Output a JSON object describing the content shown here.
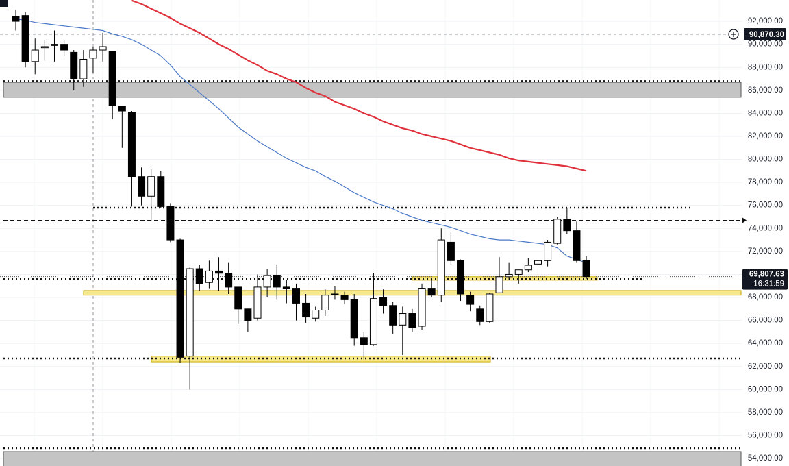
{
  "chart_data": {
    "type": "candlestick",
    "ylim": [
      53350,
      93850
    ],
    "yticks": [
      {
        "value": 54000,
        "label": "54,000.00"
      },
      {
        "value": 56000,
        "label": "56,000.00"
      },
      {
        "value": 58000,
        "label": "58,000.00"
      },
      {
        "value": 60000,
        "label": "60,000.00"
      },
      {
        "value": 62000,
        "label": "62,000.00"
      },
      {
        "value": 64000,
        "label": "64,000.00"
      },
      {
        "value": 66000,
        "label": "66,000.00"
      },
      {
        "value": 68000,
        "label": "68,000.00"
      },
      {
        "value": 70000,
        "label": "70,000.00"
      },
      {
        "value": 72000,
        "label": "72,000.00"
      },
      {
        "value": 74000,
        "label": "74,000.00"
      },
      {
        "value": 76000,
        "label": "76,000.00"
      },
      {
        "value": 78000,
        "label": "78,000.00"
      },
      {
        "value": 80000,
        "label": "80,000.00"
      },
      {
        "value": 82000,
        "label": "82,000.00"
      },
      {
        "value": 84000,
        "label": "84,000.00"
      },
      {
        "value": 86000,
        "label": "86,000.00"
      },
      {
        "value": 88000,
        "label": "88,000.00"
      },
      {
        "value": 90000,
        "label": "90,000.00"
      },
      {
        "value": 92000,
        "label": "92,000.00"
      }
    ],
    "grid": true,
    "up_color": "#ffffff",
    "down_color": "#000000",
    "open": [
      92400,
      92500,
      88500,
      89700,
      89900,
      90000,
      89300,
      87000,
      88800,
      89500,
      89400,
      84600,
      84100,
      78500,
      76800,
      78500,
      75900,
      73000,
      62900,
      70500,
      69300,
      70300,
      70100,
      68900,
      67000,
      66200,
      68900,
      69900,
      68900,
      68800,
      67500,
      66200,
      66900,
      68300,
      68200,
      67800,
      64500,
      63900,
      68000,
      67300,
      65600,
      66600,
      65500,
      68800,
      68200,
      72800,
      71200,
      68200,
      67000,
      65900,
      68400,
      69800,
      70000,
      70400,
      70900,
      71200,
      72700,
      74800,
      73800,
      71200
    ],
    "high": [
      93000,
      92800,
      90500,
      90400,
      91200,
      90400,
      89500,
      89500,
      89800,
      91000,
      89400,
      84600,
      84200,
      79300,
      79200,
      79000,
      76200,
      73100,
      70600,
      70800,
      71200,
      71500,
      71000,
      68900,
      67000,
      70000,
      70500,
      70800,
      69500,
      69200,
      68300,
      67200,
      68700,
      69000,
      68500,
      68300,
      65000,
      70100,
      68700,
      67600,
      67200,
      67000,
      69200,
      69600,
      74000,
      73700,
      71300,
      68500,
      67300,
      68400,
      71500,
      71000,
      70400,
      71400,
      71200,
      73000,
      75000,
      75800,
      74600,
      71600
    ],
    "low": [
      91200,
      88000,
      87400,
      88600,
      88500,
      89000,
      86000,
      86300,
      87500,
      88500,
      83500,
      81000,
      75900,
      76000,
      74600,
      75800,
      72800,
      62300,
      60000,
      68600,
      68800,
      68600,
      68300,
      65700,
      65000,
      66000,
      68000,
      67800,
      67500,
      66000,
      65800,
      65900,
      66400,
      67800,
      67400,
      63800,
      62600,
      63800,
      66600,
      64800,
      63000,
      65000,
      65200,
      68000,
      67600,
      70800,
      67700,
      66800,
      65600,
      65800,
      68400,
      69500,
      69200,
      70200,
      70000,
      70700,
      72600,
      73500,
      71000,
      69600
    ],
    "close": [
      92000,
      88500,
      89500,
      89800,
      90000,
      89500,
      87000,
      88700,
      89500,
      89800,
      84700,
      84200,
      78500,
      76800,
      78500,
      75900,
      73000,
      62800,
      70500,
      69200,
      70300,
      70100,
      68900,
      67000,
      66000,
      68900,
      69900,
      68900,
      68800,
      67500,
      66300,
      66900,
      68200,
      68300,
      67800,
      64500,
      63900,
      67900,
      67300,
      65600,
      66600,
      65400,
      68800,
      68200,
      73000,
      71200,
      68300,
      67400,
      65900,
      68300,
      69800,
      70000,
      70400,
      70800,
      71200,
      72800,
      74800,
      73800,
      71200,
      69807.63
    ],
    "series": [
      {
        "color": "#4a78c8",
        "values": [
          92200,
          92100,
          91900,
          91800,
          91700,
          91600,
          91500,
          91400,
          91300,
          91200,
          90900,
          90700,
          90400,
          90000,
          89500,
          89000,
          88200,
          87200,
          86500,
          85800,
          85100,
          84400,
          83600,
          82800,
          82200,
          81600,
          81100,
          80600,
          80100,
          79700,
          79300,
          79000,
          78500,
          78100,
          77600,
          77100,
          76700,
          76300,
          76000,
          75700,
          75300,
          75000,
          74700,
          74500,
          74300,
          74100,
          73800,
          73500,
          73300,
          73100,
          73000,
          73000,
          72900,
          72800,
          72700,
          72600,
          72300,
          71600,
          71300,
          71000
        ]
      },
      {
        "color": "#e0323c",
        "values": [
          null,
          null,
          null,
          null,
          null,
          null,
          null,
          null,
          null,
          null,
          null,
          null,
          93800,
          93500,
          93100,
          92700,
          92300,
          91800,
          91400,
          91000,
          90500,
          90000,
          89600,
          89100,
          88600,
          88200,
          87700,
          87400,
          87000,
          86700,
          86200,
          85800,
          85500,
          85000,
          84700,
          84400,
          84000,
          83700,
          83300,
          83000,
          82700,
          82500,
          82200,
          82000,
          81800,
          81600,
          81300,
          81000,
          80800,
          80600,
          80400,
          80100,
          79900,
          79800,
          79700,
          79600,
          79500,
          79400,
          79200,
          79000
        ]
      }
    ],
    "zones": [
      {
        "from": 85400,
        "to": 86700,
        "color": "#c4c4c4"
      },
      {
        "from": 53300,
        "to": 54600,
        "color": "#c4c4c4"
      },
      {
        "from": 68200,
        "to": 68600,
        "color": "#f7e98c"
      },
      {
        "from": 62400,
        "to": 62900,
        "color": "#f7e98c"
      },
      {
        "from": 69500,
        "to": 69800,
        "color": "#f7e98c"
      }
    ],
    "levels": [
      {
        "value": 86800,
        "style": "dotted"
      },
      {
        "value": 75800,
        "style": "dotted"
      },
      {
        "value": 69600,
        "style": "dotted"
      },
      {
        "value": 62700,
        "style": "dotted"
      },
      {
        "value": 54900,
        "style": "dotted"
      },
      {
        "value": 74700,
        "style": "dashed"
      }
    ],
    "crosshair": {
      "value": 90870.3,
      "label": "90,870.30"
    },
    "last_price": {
      "value": 69807.63,
      "label": "69,807.63",
      "countdown": "16:31:59"
    }
  }
}
